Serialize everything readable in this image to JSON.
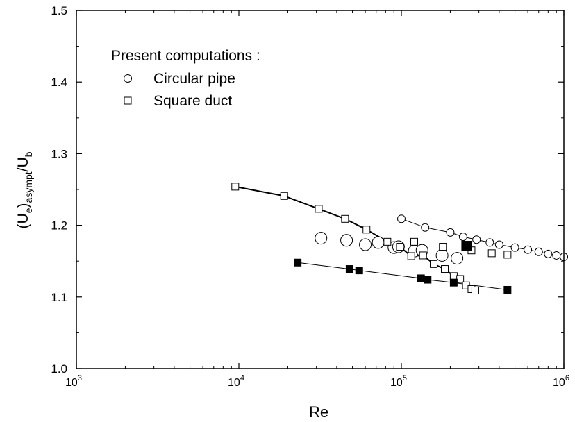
{
  "chart_data": {
    "type": "scatter",
    "x_scale": "log",
    "xlim": [
      1000,
      1000000
    ],
    "ylim": [
      1.0,
      1.5
    ],
    "xlabel": "Re",
    "ylabel": {
      "base": "(U",
      "sub1": "e",
      "mid": ")",
      "sub2": "asympt",
      "tail": "/U",
      "sub3": "b"
    },
    "x_ticks": [
      {
        "value": 1000,
        "base": "10",
        "exp": "3"
      },
      {
        "value": 10000,
        "base": "10",
        "exp": "4"
      },
      {
        "value": 100000,
        "base": "10",
        "exp": "5"
      },
      {
        "value": 1000000,
        "base": "10",
        "exp": "6"
      }
    ],
    "y_ticks": [
      "1.0",
      "1.1",
      "1.2",
      "1.3",
      "1.4",
      "1.5"
    ],
    "legend": {
      "title": "Present computations :",
      "placement": "top-left",
      "entries": [
        {
          "label": "Circular pipe",
          "marker": "open-circle"
        },
        {
          "label": "Square duct",
          "marker": "open-square"
        }
      ]
    },
    "series": [
      {
        "marker": "open-circle-small",
        "line": true,
        "line_width": 1,
        "points": [
          [
            100000,
            1.209
          ],
          [
            140000,
            1.197
          ],
          [
            200000,
            1.19
          ],
          [
            240000,
            1.184
          ],
          [
            290000,
            1.18
          ],
          [
            350000,
            1.176
          ],
          [
            400000,
            1.173
          ],
          [
            500000,
            1.169
          ],
          [
            600000,
            1.166
          ],
          [
            700000,
            1.163
          ],
          [
            800000,
            1.16
          ],
          [
            900000,
            1.158
          ],
          [
            1000000,
            1.156
          ]
        ]
      },
      {
        "marker": "open-circle-large",
        "line": false,
        "points": [
          [
            32000,
            1.182
          ],
          [
            46000,
            1.179
          ],
          [
            60000,
            1.173
          ],
          [
            72000,
            1.176
          ],
          [
            90000,
            1.169
          ],
          [
            96000,
            1.17
          ],
          [
            120000,
            1.164
          ],
          [
            134000,
            1.165
          ],
          [
            178000,
            1.158
          ],
          [
            220000,
            1.154
          ]
        ]
      },
      {
        "marker": "open-square",
        "line": true,
        "line_width": 2,
        "points": [
          [
            9500,
            1.254
          ],
          [
            19000,
            1.241
          ],
          [
            31000,
            1.223
          ],
          [
            45000,
            1.209
          ],
          [
            61000,
            1.194
          ],
          [
            82000,
            1.177
          ],
          [
            98000,
            1.17
          ],
          [
            115000,
            1.157
          ],
          [
            136000,
            1.158
          ],
          [
            158000,
            1.146
          ],
          [
            185000,
            1.139
          ],
          [
            210000,
            1.129
          ],
          [
            230000,
            1.125
          ],
          [
            250000,
            1.116
          ],
          [
            270000,
            1.111
          ],
          [
            285000,
            1.109
          ]
        ]
      },
      {
        "marker": "open-square",
        "line": false,
        "points": [
          [
            120000,
            1.177
          ],
          [
            180000,
            1.17
          ],
          [
            270000,
            1.165
          ],
          [
            360000,
            1.161
          ],
          [
            450000,
            1.159
          ]
        ]
      },
      {
        "marker": "filled-square",
        "line": true,
        "line_width": 1,
        "points": [
          [
            23000,
            1.148
          ],
          [
            48000,
            1.139
          ],
          [
            55000,
            1.137
          ],
          [
            132000,
            1.126
          ],
          [
            145000,
            1.124
          ],
          [
            210000,
            1.12
          ],
          [
            450000,
            1.11
          ]
        ]
      },
      {
        "marker": "filled-square-large",
        "line": false,
        "points": [
          [
            252000,
            1.171
          ]
        ]
      }
    ]
  }
}
